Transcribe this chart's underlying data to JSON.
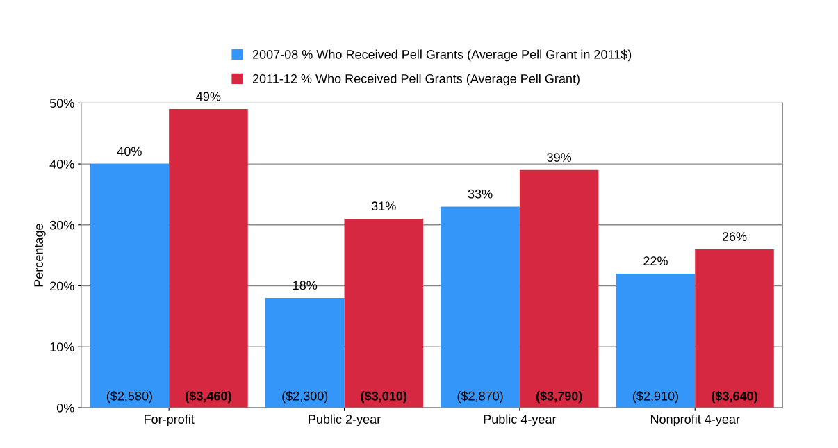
{
  "chart_data": {
    "type": "bar",
    "ylabel": "Percentage",
    "categories": [
      "For-profit",
      "Public 2-year",
      "Public 4-year",
      "Nonprofit 4-year"
    ],
    "series": [
      {
        "name": "2007-08 % Who Received Pell Grants (Average Pell Grant in 2011$)",
        "color": "#3396f8",
        "values": [
          40,
          18,
          33,
          22
        ]
      },
      {
        "name": "2011-12 % Who Received Pell Grants (Average Pell Grant)",
        "color": "#d62840",
        "values": [
          49,
          31,
          39,
          26
        ]
      }
    ],
    "value_labels": [
      "40%",
      "18%",
      "33%",
      "22%",
      "49%",
      "31%",
      "39%",
      "26%"
    ],
    "annotations": [
      "($2,580)",
      "($3,460)",
      "($2,300)",
      "($3,010)",
      "($2,870)",
      "($3,790)",
      "($2,910)",
      "($3,640)"
    ],
    "ylim": [
      0,
      50
    ],
    "yticks": [
      {
        "value": 0,
        "label": "0%"
      },
      {
        "value": 10,
        "label": "10%"
      },
      {
        "value": 20,
        "label": "20%"
      },
      {
        "value": 30,
        "label": "30%"
      },
      {
        "value": 40,
        "label": "40%"
      },
      {
        "value": 50,
        "label": "50%"
      }
    ],
    "grid": "y",
    "legend": "top"
  }
}
